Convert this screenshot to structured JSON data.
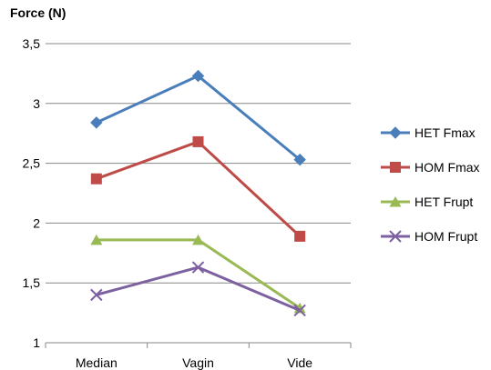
{
  "chart_data": {
    "type": "line",
    "title": "",
    "xlabel": "",
    "ylabel": "Force (N)",
    "categories": [
      "Median",
      "Vagin",
      "Vide"
    ],
    "ylim": [
      1,
      3.5
    ],
    "yticks": [
      "1",
      "1,5",
      "2",
      "2,5",
      "3",
      "3,5"
    ],
    "ytick_values": [
      1,
      1.5,
      2,
      2.5,
      3,
      3.5
    ],
    "grid": true,
    "legend_position": "right",
    "series": [
      {
        "name": "HET Fmax",
        "values": [
          2.84,
          3.23,
          2.53
        ],
        "color": "#4A7EBB",
        "marker": "diamond"
      },
      {
        "name": "HOM Fmax",
        "values": [
          2.37,
          2.68,
          1.89
        ],
        "color": "#BE4B48",
        "marker": "square"
      },
      {
        "name": "HET Frupt",
        "values": [
          1.86,
          1.86,
          1.29
        ],
        "color": "#98B954",
        "marker": "triangle"
      },
      {
        "name": "HOM Frupt",
        "values": [
          1.4,
          1.63,
          1.27
        ],
        "color": "#7D60A0",
        "marker": "x"
      }
    ]
  }
}
